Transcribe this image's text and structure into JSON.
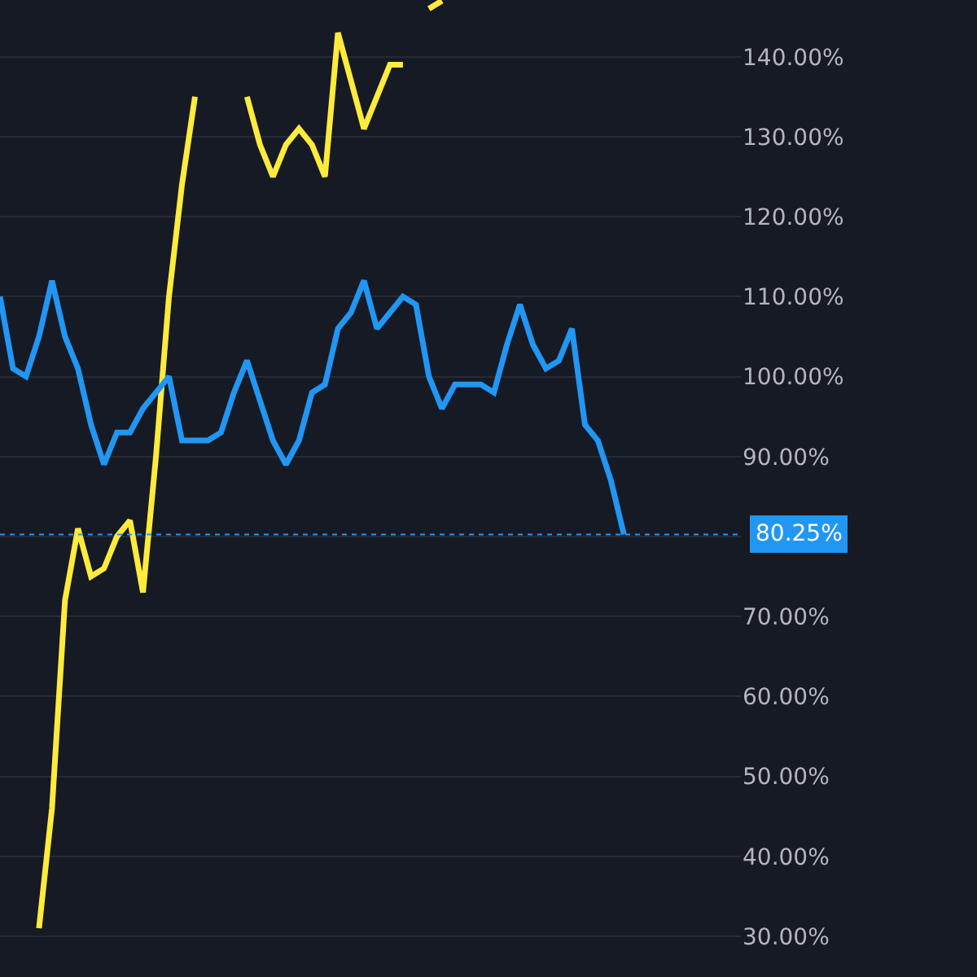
{
  "chart_data": {
    "type": "line",
    "categories": [
      null,
      null,
      null,
      null,
      null,
      null,
      null,
      null,
      null,
      null,
      null,
      null,
      null,
      null,
      null,
      null,
      null,
      null,
      null,
      null,
      null,
      null,
      null,
      null,
      null,
      null,
      null,
      null,
      null,
      null,
      null,
      null,
      null,
      null,
      null,
      null,
      null,
      null,
      null,
      null,
      null,
      null,
      null,
      null,
      null,
      null,
      null,
      null,
      null,
      null,
      null,
      null,
      null,
      null,
      null,
      null,
      null,
      null
    ],
    "series": [
      {
        "color": "#ffeb3b",
        "values": [
          null,
          null,
          null,
          31,
          46,
          72,
          81,
          75,
          76,
          80,
          82,
          73,
          90,
          110,
          124,
          135,
          null,
          null,
          null,
          135,
          129,
          125,
          129,
          131,
          129,
          125,
          143,
          137,
          131,
          135,
          139,
          139,
          null,
          146,
          147,
          null,
          null,
          null,
          null,
          null,
          null,
          null,
          null,
          null,
          null,
          null,
          null,
          null,
          null,
          null,
          null,
          null,
          null,
          null,
          null,
          null,
          null,
          null
        ]
      },
      {
        "color": "#2196f3",
        "values": [
          110,
          101,
          100,
          105,
          112,
          105,
          101,
          94,
          89,
          93,
          93,
          96,
          98,
          100,
          92,
          92,
          92,
          93,
          98,
          102,
          97,
          92,
          89,
          92,
          98,
          99,
          106,
          108,
          112,
          106,
          108,
          110,
          109,
          100,
          96,
          99,
          99,
          99,
          98,
          104,
          109,
          104,
          101,
          102,
          106,
          94,
          92,
          87,
          80.25,
          null,
          null,
          null,
          null,
          null,
          null,
          null,
          null,
          null
        ]
      }
    ],
    "ylim": [
      24.9,
      147.1
    ],
    "yticks": [
      {
        "value": 30,
        "label": "30.00%"
      },
      {
        "value": 40,
        "label": "40.00%"
      },
      {
        "value": 50,
        "label": "50.00%"
      },
      {
        "value": 60,
        "label": "60.00%"
      },
      {
        "value": 70,
        "label": "70.00%"
      },
      {
        "value": 80,
        "label": null
      },
      {
        "value": 90,
        "label": "90.00%"
      },
      {
        "value": 100,
        "label": "100.00%"
      },
      {
        "value": 110,
        "label": "110.00%"
      },
      {
        "value": 120,
        "label": "120.00%"
      },
      {
        "value": 130,
        "label": "130.00%"
      },
      {
        "value": 140,
        "label": "140.00%"
      }
    ],
    "tick_labels": "y",
    "grid": "y",
    "marker": "none",
    "line_style": "solid",
    "ref_lines": [
      {
        "axis": "y",
        "value": 80.25,
        "label": "80.25%",
        "color": "#2196f3",
        "line_style": "dotted"
      }
    ]
  }
}
